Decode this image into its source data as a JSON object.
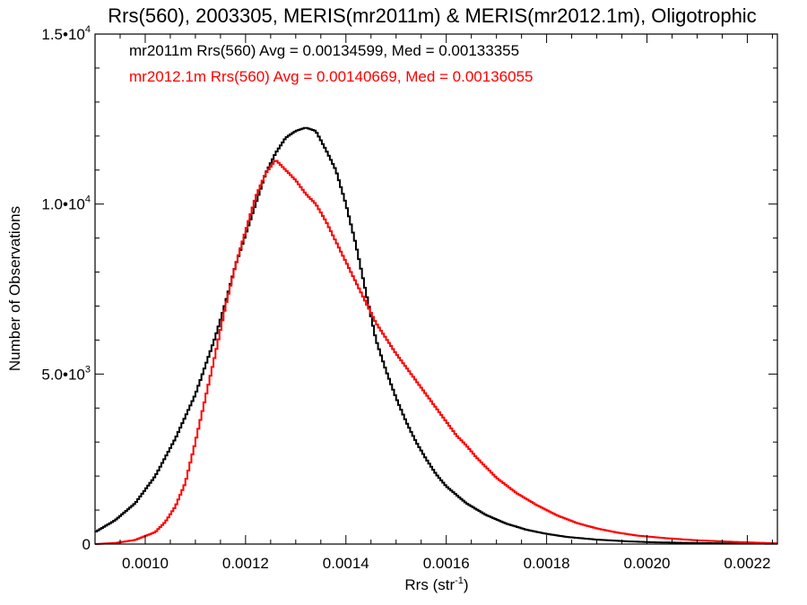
{
  "chart_data": {
    "type": "histogram",
    "title": "Rrs(560), 2003305, MERIS(mr2011m) & MERIS(mr2012.1m), Oligotrophic",
    "xlabel": "Rrs (str",
    "xlabel_sup": "-1",
    "xlabel_end": ")",
    "ylabel": "Number of Observations",
    "xlim": [
      0.0009,
      0.00226
    ],
    "ylim": [
      0,
      15000
    ],
    "x_ticks": [
      {
        "value": 0.001,
        "label": "0.0010"
      },
      {
        "value": 0.0012,
        "label": "0.0012"
      },
      {
        "value": 0.0014,
        "label": "0.0014"
      },
      {
        "value": 0.0016,
        "label": "0.0016"
      },
      {
        "value": 0.0018,
        "label": "0.0018"
      },
      {
        "value": 0.002,
        "label": "0.0020"
      },
      {
        "value": 0.0022,
        "label": "0.0022"
      }
    ],
    "y_ticks": [
      {
        "value": 0,
        "mant": "0",
        "exp": ""
      },
      {
        "value": 5000,
        "mant": "5.0•10",
        "exp": "3"
      },
      {
        "value": 10000,
        "mant": "1.0•10",
        "exp": "4"
      },
      {
        "value": 15000,
        "mant": "1.5•10",
        "exp": "4"
      }
    ],
    "grid": false,
    "legend_position": "top-left",
    "series": [
      {
        "name": "mr2011m",
        "color": "#000000",
        "legend_text": "mr2011m Rrs(560) Avg = 0.00134599, Med = 0.00133355",
        "points": [
          [
            0.0009,
            350
          ],
          [
            0.00094,
            700
          ],
          [
            0.00098,
            1200
          ],
          [
            0.00102,
            2000
          ],
          [
            0.00106,
            3100
          ],
          [
            0.0011,
            4400
          ],
          [
            0.00114,
            6100
          ],
          [
            0.00116,
            7100
          ],
          [
            0.00118,
            8200
          ],
          [
            0.0012,
            9100
          ],
          [
            0.00122,
            10000
          ],
          [
            0.00124,
            10900
          ],
          [
            0.00126,
            11500
          ],
          [
            0.00128,
            11950
          ],
          [
            0.0013,
            12150
          ],
          [
            0.00132,
            12250
          ],
          [
            0.00134,
            12150
          ],
          [
            0.00136,
            11600
          ],
          [
            0.00138,
            11000
          ],
          [
            0.0014,
            10000
          ],
          [
            0.00142,
            8800
          ],
          [
            0.00144,
            7400
          ],
          [
            0.00146,
            6000
          ],
          [
            0.00148,
            5100
          ],
          [
            0.0015,
            4300
          ],
          [
            0.00152,
            3600
          ],
          [
            0.00154,
            3000
          ],
          [
            0.00156,
            2500
          ],
          [
            0.00158,
            2050
          ],
          [
            0.0016,
            1700
          ],
          [
            0.00164,
            1200
          ],
          [
            0.00168,
            850
          ],
          [
            0.00172,
            600
          ],
          [
            0.00176,
            420
          ],
          [
            0.0018,
            300
          ],
          [
            0.00184,
            210
          ],
          [
            0.0019,
            130
          ],
          [
            0.00196,
            80
          ],
          [
            0.00202,
            50
          ],
          [
            0.0021,
            30
          ],
          [
            0.00218,
            15
          ],
          [
            0.00226,
            10
          ]
        ]
      },
      {
        "name": "mr2012.1m",
        "color": "#ff0000",
        "legend_text": "mr2012.1m Rrs(560) Avg = 0.00140669, Med = 0.00136055",
        "points": [
          [
            0.0009,
            0
          ],
          [
            0.00094,
            30
          ],
          [
            0.00098,
            120
          ],
          [
            0.00102,
            350
          ],
          [
            0.00104,
            650
          ],
          [
            0.00106,
            1100
          ],
          [
            0.00108,
            1800
          ],
          [
            0.0011,
            3000
          ],
          [
            0.00112,
            4300
          ],
          [
            0.00114,
            5600
          ],
          [
            0.00116,
            7000
          ],
          [
            0.00118,
            8200
          ],
          [
            0.0012,
            9200
          ],
          [
            0.00122,
            10200
          ],
          [
            0.00124,
            10900
          ],
          [
            0.00126,
            11300
          ],
          [
            0.00128,
            11000
          ],
          [
            0.0013,
            10700
          ],
          [
            0.00132,
            10300
          ],
          [
            0.00134,
            10000
          ],
          [
            0.00136,
            9500
          ],
          [
            0.00138,
            8900
          ],
          [
            0.0014,
            8300
          ],
          [
            0.00142,
            7700
          ],
          [
            0.00144,
            7100
          ],
          [
            0.00146,
            6500
          ],
          [
            0.00148,
            6050
          ],
          [
            0.0015,
            5600
          ],
          [
            0.00152,
            5200
          ],
          [
            0.00154,
            4800
          ],
          [
            0.00156,
            4400
          ],
          [
            0.00158,
            4000
          ],
          [
            0.0016,
            3600
          ],
          [
            0.00162,
            3200
          ],
          [
            0.00164,
            2900
          ],
          [
            0.00166,
            2550
          ],
          [
            0.00168,
            2250
          ],
          [
            0.0017,
            1950
          ],
          [
            0.00174,
            1500
          ],
          [
            0.00178,
            1150
          ],
          [
            0.00182,
            850
          ],
          [
            0.00186,
            620
          ],
          [
            0.0019,
            460
          ],
          [
            0.00194,
            340
          ],
          [
            0.00198,
            250
          ],
          [
            0.00204,
            170
          ],
          [
            0.0021,
            110
          ],
          [
            0.00218,
            60
          ],
          [
            0.00226,
            20
          ]
        ]
      }
    ]
  }
}
